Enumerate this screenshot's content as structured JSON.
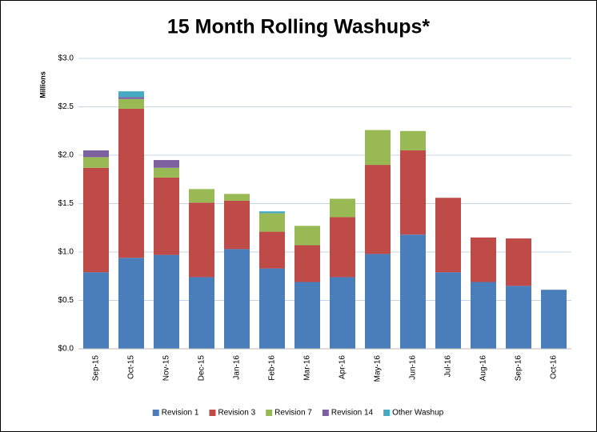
{
  "chart_data": {
    "type": "stacked_bar",
    "title": "15 Month Rolling Washups*",
    "y_label": "Millions",
    "categories": [
      "Sep-15",
      "Oct-15",
      "Nov-15",
      "Dec-15",
      "Jan-16",
      "Feb-16",
      "Mar-16",
      "Apr-16",
      "May-16",
      "Jun-16",
      "Jul-16",
      "Aug-16",
      "Sep-16",
      "Oct-16"
    ],
    "series": [
      {
        "name": "Revision 1",
        "color": "#4a7ebb",
        "values": [
          0.79,
          0.94,
          0.97,
          0.74,
          1.03,
          0.83,
          0.69,
          0.74,
          0.98,
          1.18,
          0.79,
          0.69,
          0.65,
          0.61
        ]
      },
      {
        "name": "Revision 3",
        "color": "#be4b48",
        "values": [
          1.08,
          1.54,
          0.8,
          0.77,
          0.5,
          0.38,
          0.38,
          0.62,
          0.92,
          0.87,
          0.77,
          0.46,
          0.49,
          0
        ]
      },
      {
        "name": "Revision 7",
        "color": "#98b954",
        "values": [
          0.11,
          0.1,
          0.1,
          0.14,
          0.07,
          0.19,
          0.2,
          0.19,
          0.36,
          0.2,
          0,
          0,
          0,
          0
        ]
      },
      {
        "name": "Revision 14",
        "color": "#7d60a0",
        "values": [
          0.07,
          0.02,
          0.08,
          0,
          0,
          0,
          0,
          0,
          0,
          0,
          0,
          0,
          0,
          0
        ]
      },
      {
        "name": "Other Washup",
        "color": "#46aac5",
        "values": [
          0,
          0.06,
          0,
          0,
          0,
          0.02,
          0,
          0,
          0,
          0,
          0,
          0,
          0,
          0
        ]
      }
    ],
    "ylim": [
      0,
      3.0
    ],
    "yticks": [
      {
        "value": 0,
        "label": "$0.0"
      },
      {
        "value": 0.5,
        "label": "$0.5"
      },
      {
        "value": 1.0,
        "label": "$1.0"
      },
      {
        "value": 1.5,
        "label": "$1.5"
      },
      {
        "value": 2.0,
        "label": "$2.0"
      },
      {
        "value": 2.5,
        "label": "$2.5"
      },
      {
        "value": 3.0,
        "label": "$3.0"
      }
    ],
    "grid": true,
    "legend": "bottom"
  }
}
